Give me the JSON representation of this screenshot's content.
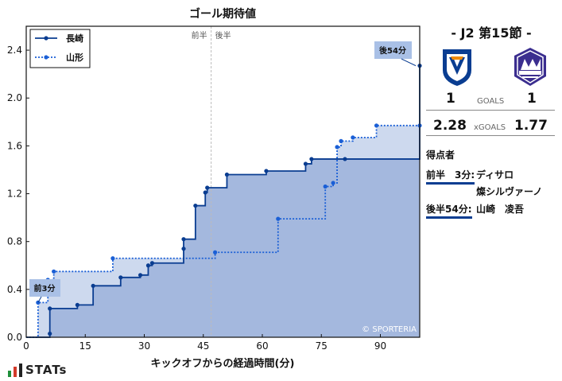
{
  "chart_data": {
    "type": "line",
    "title": "ゴール期待値",
    "xlabel": "キックオフからの経過時間(分)",
    "ylabel": "",
    "xlim": [
      0,
      100
    ],
    "ylim": [
      0,
      2.6
    ],
    "xticks": [
      0,
      15,
      30,
      45,
      60,
      75,
      90
    ],
    "yticks": [
      0.0,
      0.4,
      0.8,
      1.2,
      1.6,
      2.0,
      2.4
    ],
    "legend_position": "top-left",
    "half_time_x": 47,
    "half_labels": [
      "前半",
      "後半"
    ],
    "series": [
      {
        "name": "長崎",
        "color": "#0a3d91",
        "style": "solid",
        "points": [
          [
            0,
            0
          ],
          [
            6,
            0.03
          ],
          [
            6,
            0.24
          ],
          [
            13,
            0.27
          ],
          [
            17,
            0.43
          ],
          [
            24,
            0.5
          ],
          [
            29,
            0.52
          ],
          [
            31,
            0.6
          ],
          [
            32,
            0.62
          ],
          [
            40,
            0.74
          ],
          [
            40,
            0.82
          ],
          [
            43,
            1.1
          ],
          [
            45.5,
            1.21
          ],
          [
            46,
            1.25
          ],
          [
            51,
            1.36
          ],
          [
            61,
            1.39
          ],
          [
            71,
            1.45
          ],
          [
            72.5,
            1.49
          ],
          [
            81,
            1.49
          ],
          [
            100,
            2.27
          ]
        ]
      },
      {
        "name": "山形",
        "color": "#1a5fd6",
        "style": "dotted",
        "points": [
          [
            0,
            0
          ],
          [
            3,
            0.29
          ],
          [
            5.5,
            0.48
          ],
          [
            7,
            0.55
          ],
          [
            22,
            0.66
          ],
          [
            48,
            0.71
          ],
          [
            64,
            0.99
          ],
          [
            76,
            1.26
          ],
          [
            78,
            1.29
          ],
          [
            79,
            1.59
          ],
          [
            80,
            1.64
          ],
          [
            83,
            1.67
          ],
          [
            89,
            1.77
          ],
          [
            100,
            1.77
          ]
        ]
      }
    ],
    "annotations": [
      {
        "text": "前3分",
        "x": 3
      },
      {
        "text": "後54分",
        "x": 99
      }
    ],
    "watermark": "© SPORTERIA"
  },
  "match": {
    "title": "- J2 第15節 -",
    "home_score": "1",
    "away_score": "1",
    "goals_label": "GOALS",
    "home_xg": "2.28",
    "away_xg": "1.77",
    "xg_label": "xGOALS",
    "home_color": "#0a3d91",
    "away_color": "#3b2e8f"
  },
  "scorers": {
    "heading": "得点者",
    "rows": [
      {
        "half": "前半　3分:",
        "names": [
          "ディサロ",
          "燦シルヴァーノ"
        ]
      },
      {
        "half": "後半54分:",
        "names": [
          "山崎　凌吾"
        ]
      }
    ]
  },
  "branding": {
    "logo_text": "STATs",
    "logo_icon": "bar-chart-icon"
  }
}
